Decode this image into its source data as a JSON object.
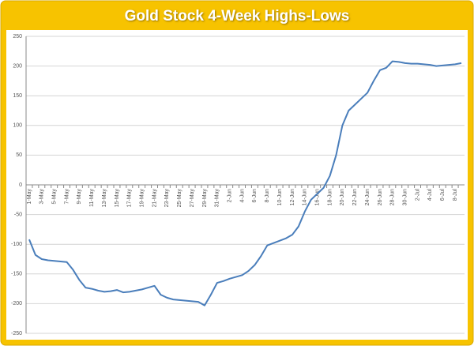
{
  "chart_data": {
    "type": "line",
    "title": "Gold Stock 4-Week Highs-Lows",
    "categories": [
      "1-May",
      null,
      "3-May",
      null,
      "5-May",
      null,
      "7-May",
      null,
      "9-May",
      null,
      "11-May",
      null,
      "13-May",
      null,
      "15-May",
      null,
      "17-May",
      null,
      "19-May",
      null,
      "21-May",
      null,
      "23-May",
      null,
      "25-May",
      null,
      "27-May",
      null,
      "29-May",
      null,
      "31-May",
      null,
      "2-Jun",
      null,
      "4-Jun",
      null,
      "6-Jun",
      null,
      "8-Jun",
      null,
      "10-Jun",
      null,
      "12-Jun",
      null,
      "14-Jun",
      null,
      "16-Jun",
      null,
      "18-Jun",
      null,
      "20-Jun",
      null,
      "22-Jun",
      null,
      "24-Jun",
      null,
      "26-Jun",
      null,
      "28-Jun",
      null,
      "30-Jun",
      null,
      "2-Jul",
      null,
      "4-Jul",
      null,
      "6-Jul",
      null,
      "8-Jul",
      null
    ],
    "series": [
      {
        "color": "#4a7ebb",
        "values": [
          -92,
          -118,
          -125,
          -127,
          -128,
          -129,
          -130,
          -143,
          -160,
          -173,
          -175,
          -178,
          -180,
          -179,
          -177,
          -181,
          -180,
          -178,
          -176,
          -173,
          -170,
          -185,
          -190,
          -193,
          -194,
          -195,
          -196,
          -197,
          -203,
          -185,
          -165,
          -162,
          -158,
          -155,
          -152,
          -145,
          -135,
          -120,
          -102,
          -98,
          -94,
          -90,
          -84,
          -70,
          -45,
          -25,
          -15,
          -5,
          15,
          50,
          100,
          125,
          135,
          145,
          155,
          175,
          193,
          197,
          208,
          207,
          205,
          204,
          204,
          203,
          202,
          200,
          201,
          202,
          203,
          205
        ]
      }
    ],
    "ylim": [
      -250,
      250
    ],
    "yticks": [
      -250,
      -200,
      -150,
      -100,
      -50,
      0,
      50,
      100,
      150,
      200,
      250
    ],
    "grid": true
  }
}
